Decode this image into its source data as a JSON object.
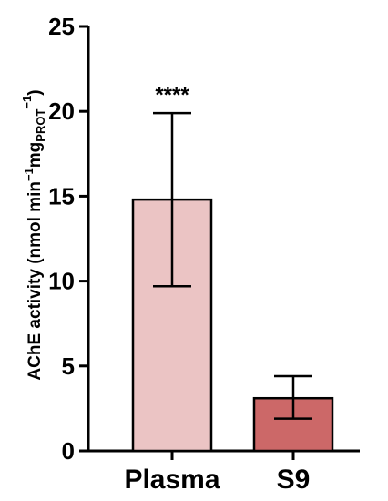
{
  "chart_data": {
    "type": "bar",
    "categories": [
      "Plasma",
      "S9"
    ],
    "values": [
      14.8,
      3.1
    ],
    "errors": [
      {
        "lower": 9.7,
        "upper": 19.9
      },
      {
        "lower": 1.9,
        "upper": 4.4
      }
    ],
    "bar_colors": [
      "#ebc4c4",
      "#cc6868"
    ],
    "annotations": [
      {
        "category": "Plasma",
        "text": "****"
      }
    ],
    "ylabel": {
      "main": "AChE activity (nmol min",
      "sup1": "−1",
      "mid": "mg",
      "sub": "PROT",
      "sup2": "−1",
      "close": ")"
    },
    "ylim": [
      0,
      25
    ],
    "yticks": [
      0,
      5,
      10,
      15,
      20,
      25
    ],
    "grid": false,
    "legend": "none"
  }
}
